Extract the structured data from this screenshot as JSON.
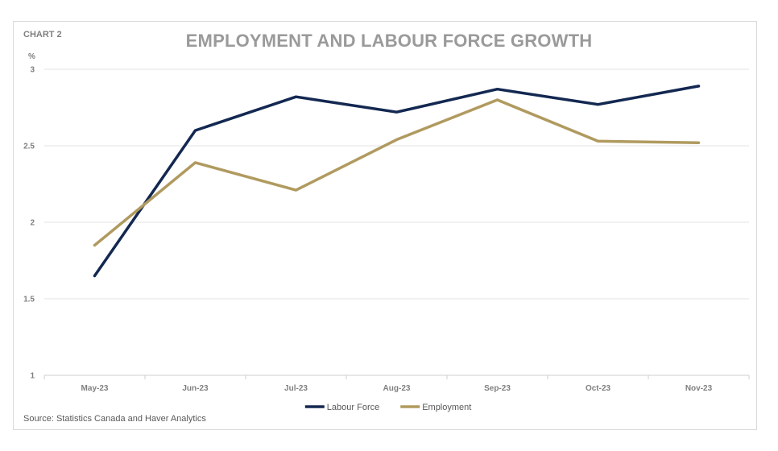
{
  "chart_label": "CHART 2",
  "source_note": "Source: Statistics Canada and Haver Analytics",
  "colors": {
    "labour_force": "#132851",
    "employment": "#b09a5f",
    "gridline": "#e3e3e3",
    "axis_text": "#7f7f7f"
  },
  "chart_data": {
    "type": "line",
    "title": "EMPLOYMENT AND LABOUR FORCE GROWTH",
    "ylabel": "%",
    "xlabel": "",
    "categories": [
      "May-23",
      "Jun-23",
      "Jul-23",
      "Aug-23",
      "Sep-23",
      "Oct-23",
      "Nov-23"
    ],
    "ylim": [
      1,
      3
    ],
    "yticks": [
      "1",
      "1.5",
      "2",
      "2.5",
      "3"
    ],
    "grid": true,
    "legend_position": "bottom",
    "series": [
      {
        "name": "Labour Force",
        "values": [
          1.65,
          2.6,
          2.82,
          2.72,
          2.87,
          2.77,
          2.89
        ]
      },
      {
        "name": "Employment",
        "values": [
          1.85,
          2.39,
          2.21,
          2.54,
          2.8,
          2.53,
          2.52
        ]
      }
    ]
  }
}
